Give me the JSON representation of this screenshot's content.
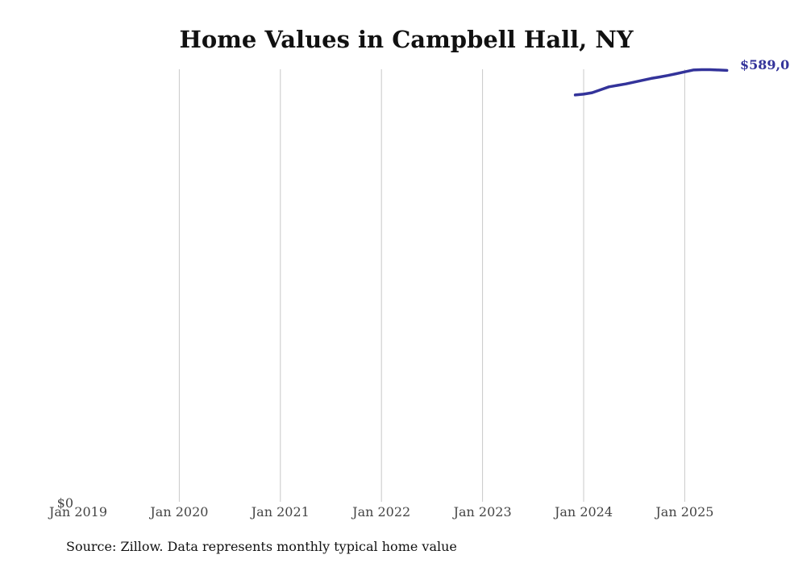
{
  "chart_data": {
    "type": "line",
    "title": "Home Values in Campbell Hall, NY",
    "xlabel": "",
    "ylabel": "",
    "x_ticks": [
      "Jan 2019",
      "Jan 2020",
      "Jan 2021",
      "Jan 2022",
      "Jan 2023",
      "Jan 2024",
      "Jan 2025"
    ],
    "xlim": [
      "2019-01",
      "2025-07"
    ],
    "y_tick_label": "$0",
    "ylim": [
      0,
      590000
    ],
    "grid": "vertical",
    "line_color": "#33339a",
    "end_label": "$589,0",
    "series": [
      {
        "x": [
          "2023-12",
          "2024-01",
          "2024-02",
          "2024-03",
          "2024-04",
          "2024-05",
          "2024-06",
          "2024-07",
          "2024-08",
          "2024-09",
          "2024-10",
          "2024-11",
          "2024-12",
          "2025-01",
          "2025-02",
          "2025-03",
          "2025-04",
          "2025-05",
          "2025-06"
        ],
        "values": [
          555000,
          556000,
          558000,
          562000,
          566000,
          568000,
          570000,
          572500,
          575000,
          577500,
          579500,
          581500,
          584000,
          586500,
          589000,
          589500,
          589500,
          589000,
          588500
        ]
      }
    ]
  },
  "footer": {
    "source": "Source: Zillow. Data represents monthly typical home value"
  }
}
